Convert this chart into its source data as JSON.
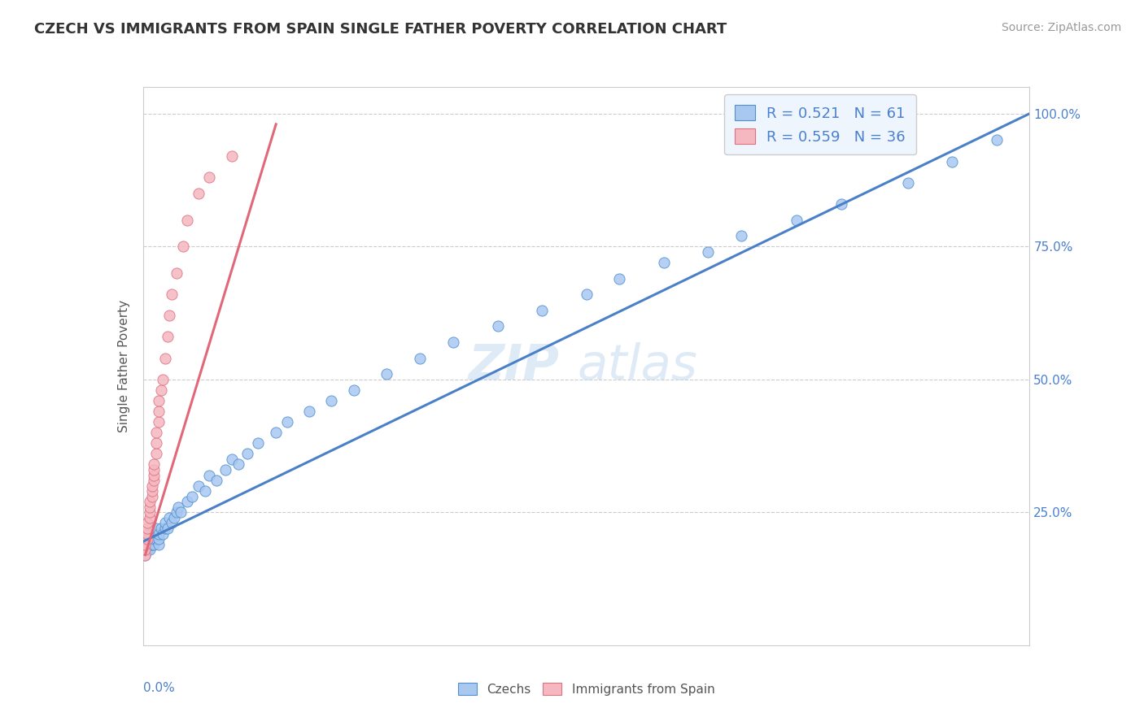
{
  "title": "CZECH VS IMMIGRANTS FROM SPAIN SINGLE FATHER POVERTY CORRELATION CHART",
  "source": "Source: ZipAtlas.com",
  "ylabel": "Single Father Poverty",
  "xmin": 0.0,
  "xmax": 0.4,
  "ymin": 0.0,
  "ymax": 1.05,
  "r_czech": 0.521,
  "n_czech": 61,
  "r_spain": 0.559,
  "n_spain": 36,
  "blue_fill": "#A8C8F0",
  "blue_edge": "#5090D0",
  "pink_fill": "#F5B8C0",
  "pink_edge": "#E07080",
  "blue_line": "#4A80C8",
  "pink_line": "#E06878",
  "watermark_color": "#C8DDF0",
  "legend_text_color": "#4A80D0",
  "grid_color": "#CCCCCC",
  "czech_x": [
    0.001,
    0.001,
    0.002,
    0.002,
    0.003,
    0.003,
    0.003,
    0.003,
    0.004,
    0.004,
    0.004,
    0.005,
    0.005,
    0.005,
    0.006,
    0.006,
    0.007,
    0.007,
    0.007,
    0.008,
    0.009,
    0.01,
    0.01,
    0.011,
    0.012,
    0.013,
    0.014,
    0.015,
    0.016,
    0.017,
    0.02,
    0.022,
    0.025,
    0.028,
    0.03,
    0.033,
    0.037,
    0.04,
    0.043,
    0.047,
    0.052,
    0.06,
    0.065,
    0.075,
    0.085,
    0.095,
    0.11,
    0.125,
    0.14,
    0.16,
    0.18,
    0.2,
    0.215,
    0.235,
    0.255,
    0.27,
    0.295,
    0.315,
    0.345,
    0.365,
    0.385
  ],
  "czech_y": [
    0.17,
    0.19,
    0.18,
    0.2,
    0.18,
    0.19,
    0.2,
    0.21,
    0.19,
    0.2,
    0.21,
    0.19,
    0.2,
    0.21,
    0.2,
    0.22,
    0.19,
    0.2,
    0.21,
    0.22,
    0.21,
    0.22,
    0.23,
    0.22,
    0.24,
    0.23,
    0.24,
    0.25,
    0.26,
    0.25,
    0.27,
    0.28,
    0.3,
    0.29,
    0.32,
    0.31,
    0.33,
    0.35,
    0.34,
    0.36,
    0.38,
    0.4,
    0.42,
    0.44,
    0.46,
    0.48,
    0.51,
    0.54,
    0.57,
    0.6,
    0.63,
    0.66,
    0.69,
    0.72,
    0.74,
    0.77,
    0.8,
    0.83,
    0.87,
    0.91,
    0.95
  ],
  "spain_x": [
    0.001,
    0.001,
    0.001,
    0.002,
    0.002,
    0.002,
    0.002,
    0.003,
    0.003,
    0.003,
    0.003,
    0.004,
    0.004,
    0.004,
    0.005,
    0.005,
    0.005,
    0.005,
    0.006,
    0.006,
    0.006,
    0.007,
    0.007,
    0.007,
    0.008,
    0.009,
    0.01,
    0.011,
    0.012,
    0.013,
    0.015,
    0.018,
    0.02,
    0.025,
    0.03,
    0.04
  ],
  "spain_y": [
    0.17,
    0.18,
    0.19,
    0.2,
    0.21,
    0.22,
    0.23,
    0.24,
    0.25,
    0.26,
    0.27,
    0.28,
    0.29,
    0.3,
    0.31,
    0.32,
    0.33,
    0.34,
    0.36,
    0.38,
    0.4,
    0.42,
    0.44,
    0.46,
    0.48,
    0.5,
    0.54,
    0.58,
    0.62,
    0.66,
    0.7,
    0.75,
    0.8,
    0.85,
    0.88,
    0.92
  ],
  "blue_trend_x0": 0.0,
  "blue_trend_y0": 0.195,
  "blue_trend_x1": 0.4,
  "blue_trend_y1": 1.0,
  "pink_trend_x0": 0.001,
  "pink_trend_y0": 0.17,
  "pink_trend_x1": 0.06,
  "pink_trend_y1": 0.98
}
